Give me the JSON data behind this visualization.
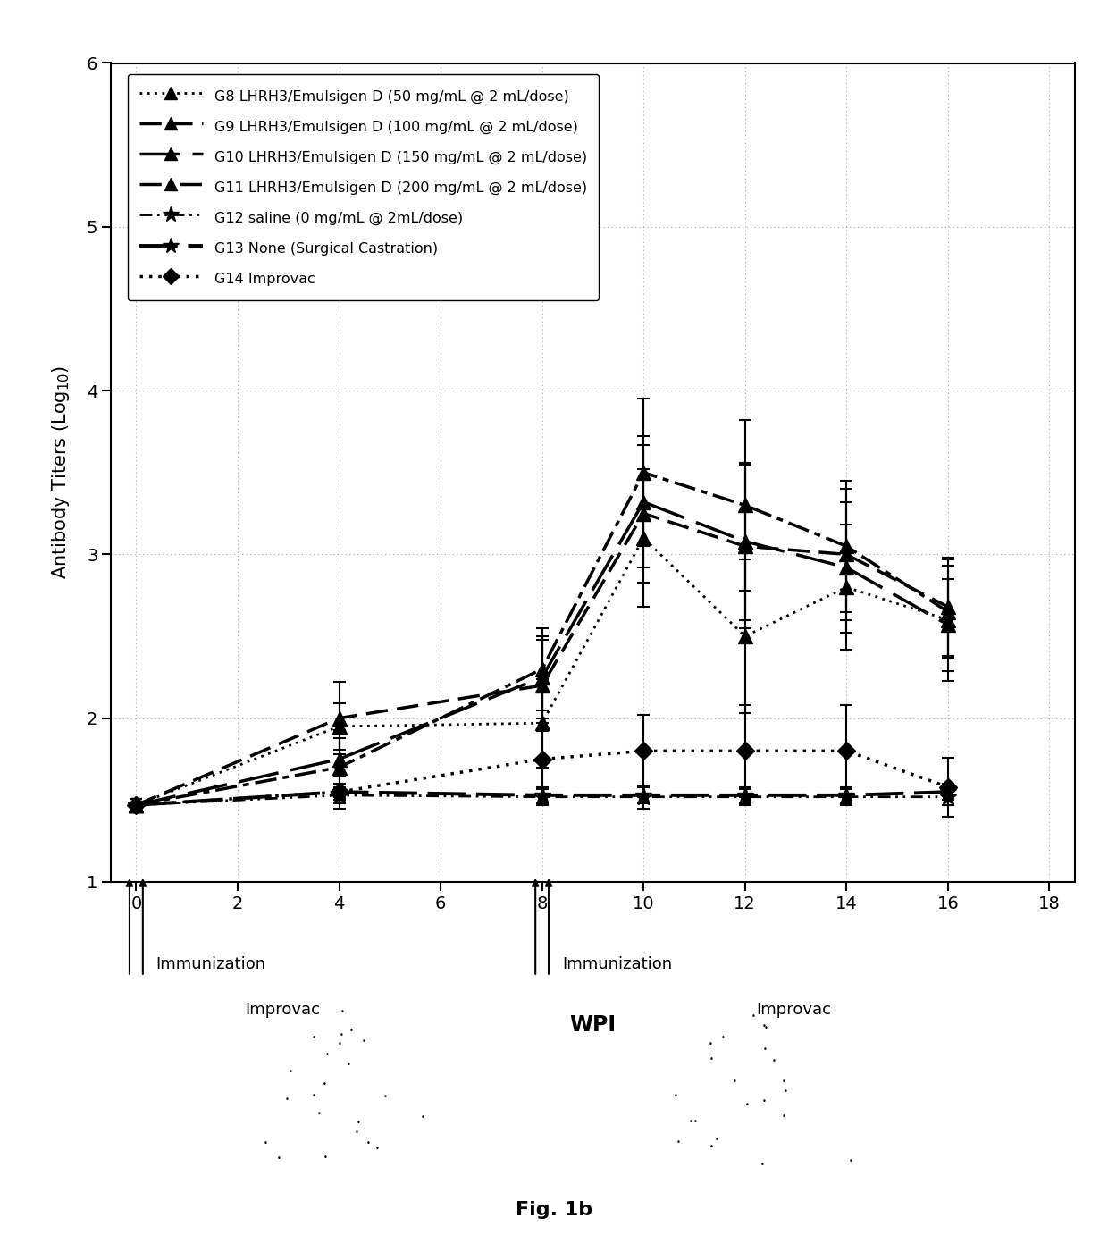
{
  "fig_label": "Fig. 1b",
  "ylabel": "Antibody Titers (Log$_{10}$)",
  "xlim": [
    -0.5,
    18.5
  ],
  "ylim": [
    1.0,
    6.0
  ],
  "xticks": [
    0,
    2,
    4,
    6,
    8,
    10,
    12,
    14,
    16,
    18
  ],
  "yticks": [
    1,
    2,
    3,
    4,
    5,
    6
  ],
  "series": [
    {
      "label": "G8 LHRH3/Emulsigen D (50 mg/mL @ 2 mL/dose)",
      "ls_key": "dotted",
      "marker": "^",
      "ms": 11,
      "lw": 2.0,
      "x": [
        0,
        4,
        8,
        10,
        12,
        14,
        16
      ],
      "y": [
        1.47,
        1.95,
        1.97,
        3.1,
        2.5,
        2.8,
        2.6
      ],
      "yerr": [
        0.04,
        0.14,
        0.27,
        0.42,
        0.47,
        0.38,
        0.37
      ]
    },
    {
      "label": "G9 LHRH3/Emulsigen D (100 mg/mL @ 2 mL/dose)",
      "ls_key": "dashed_short",
      "marker": "^",
      "ms": 11,
      "lw": 2.5,
      "x": [
        0,
        4,
        8,
        10,
        12,
        14,
        16
      ],
      "y": [
        1.47,
        2.0,
        2.2,
        3.25,
        3.05,
        3.0,
        2.68
      ],
      "yerr": [
        0.04,
        0.22,
        0.28,
        0.42,
        0.5,
        0.4,
        0.3
      ]
    },
    {
      "label": "G10 LHRH3/Emulsigen D (150 mg/mL @ 2 mL/dose)",
      "ls_key": "dashed_long",
      "marker": "^",
      "ms": 11,
      "lw": 2.5,
      "x": [
        0,
        4,
        8,
        10,
        12,
        14,
        16
      ],
      "y": [
        1.47,
        1.75,
        2.25,
        3.32,
        3.08,
        2.92,
        2.57
      ],
      "yerr": [
        0.04,
        0.18,
        0.25,
        0.4,
        0.48,
        0.4,
        0.28
      ]
    },
    {
      "label": "G11 LHRH3/Emulsigen D (200 mg/mL @ 2 mL/dose)",
      "ls_key": "dashdot",
      "marker": "^",
      "ms": 11,
      "lw": 2.5,
      "x": [
        0,
        4,
        8,
        10,
        12,
        14,
        16
      ],
      "y": [
        1.47,
        1.7,
        2.3,
        3.5,
        3.3,
        3.05,
        2.65
      ],
      "yerr": [
        0.04,
        0.18,
        0.25,
        0.45,
        0.52,
        0.4,
        0.28
      ]
    },
    {
      "label": "G12 saline (0 mg/mL @ 2mL/dose)",
      "ls_key": "dashdotdot",
      "marker": "*",
      "ms": 14,
      "lw": 2.0,
      "x": [
        0,
        4,
        8,
        10,
        12,
        14,
        16
      ],
      "y": [
        1.47,
        1.53,
        1.52,
        1.52,
        1.52,
        1.52,
        1.52
      ],
      "yerr": [
        0.04,
        0.05,
        0.05,
        0.07,
        0.05,
        0.05,
        0.05
      ]
    },
    {
      "label": "G13 None (Surgical Castration)",
      "ls_key": "dashed_heavy",
      "marker": "*",
      "ms": 14,
      "lw": 2.8,
      "x": [
        0,
        4,
        8,
        10,
        12,
        14,
        16
      ],
      "y": [
        1.47,
        1.55,
        1.53,
        1.53,
        1.53,
        1.53,
        1.55
      ],
      "yerr": [
        0.04,
        0.05,
        0.05,
        0.05,
        0.05,
        0.05,
        0.05
      ]
    },
    {
      "label": "G14 Improvac",
      "ls_key": "dotted_heavy",
      "marker": "D",
      "ms": 10,
      "lw": 2.5,
      "x": [
        0,
        4,
        8,
        10,
        12,
        14,
        16
      ],
      "y": [
        1.47,
        1.55,
        1.75,
        1.8,
        1.8,
        1.8,
        1.58
      ],
      "yerr": [
        0.04,
        0.1,
        0.22,
        0.22,
        0.28,
        0.28,
        0.18
      ]
    }
  ],
  "legend_styles": [
    {
      "ls_key": "dotted",
      "marker": "^",
      "ms": 10,
      "lw": 2.0,
      "label": "G8 LHRH3/Emulsigen D (50 mg/mL @ 2 mL/dose)"
    },
    {
      "ls_key": "dashed_short",
      "marker": "^",
      "ms": 10,
      "lw": 2.5,
      "label": "G9 LHRH3/Emulsigen D (100 mg/mL @ 2 mL/dose)"
    },
    {
      "ls_key": "dashed_long",
      "marker": "^",
      "ms": 10,
      "lw": 2.5,
      "label": "G10 LHRH3/Emulsigen D (150 mg/mL @ 2 mL/dose)"
    },
    {
      "ls_key": "dashdot",
      "marker": "^",
      "ms": 10,
      "lw": 2.5,
      "label": "G11 LHRH3/Emulsigen D (200 mg/mL @ 2 mL/dose)"
    },
    {
      "ls_key": "dashdotdot",
      "marker": "*",
      "ms": 13,
      "lw": 2.0,
      "label": "G12 saline (0 mg/mL @ 2mL/dose)"
    },
    {
      "ls_key": "dashed_heavy",
      "marker": "*",
      "ms": 13,
      "lw": 2.8,
      "label": "G13 None (Surgical Castration)"
    },
    {
      "ls_key": "dotted_heavy",
      "marker": "D",
      "ms": 9,
      "lw": 2.5,
      "label": "G14 Improvac"
    }
  ]
}
